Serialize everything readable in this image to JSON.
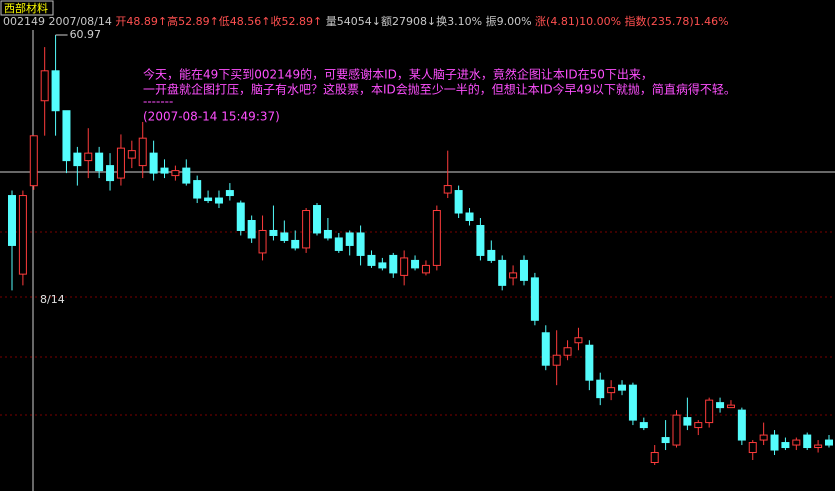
{
  "header": {
    "stock_name": "西部材料",
    "quote": [
      "002149 2007/08/14",
      "开48.89↑高52.89↑低48.56↑收52.89↑",
      "量54054↓额27908↓换3.10% 振9.00%",
      "涨(4.81)10.00% 指数(235.78)1.46%"
    ]
  },
  "chart_data": {
    "type": "candlestick",
    "up_color": "#ff3c3c",
    "down_color": "#54fcfc",
    "cursor_label": "8/14",
    "annotation": [
      "今天，能在49下买到002149的，可要感谢本ID，某人脑子进水，竟然企图让本ID在50下出来，",
      "一开盘就企图打压，脑子有水吧？这股票，本ID会抛至少一半的，但想让本ID今早49以下就抛，简直病得不轻。",
      "-------",
      "(2007-08-14 15:49:37)"
    ],
    "open": [
      48.1,
      41.8,
      48.89,
      55.7,
      58.1,
      54.9,
      51.5,
      50.9,
      51.5,
      50.5,
      49.5,
      51.1,
      50.5,
      51.5,
      50.3,
      49.7,
      50.3,
      49.3,
      47.9,
      47.9,
      48.5,
      47.5,
      46.1,
      43.5,
      45.3,
      45.1,
      44.5,
      43.9,
      47.3,
      45.3,
      44.7,
      45.1,
      45.1,
      43.3,
      42.7,
      43.3,
      41.7,
      42.9,
      41.9,
      42.5,
      48.3,
      48.5,
      46.7,
      45.7,
      43.7,
      42.9,
      41.5,
      42.9,
      41.5,
      37.1,
      34.5,
      35.3,
      36.3,
      36.1,
      33.3,
      32.3,
      32.9,
      32.9,
      29.9,
      26.7,
      28.7,
      28.1,
      30.3,
      29.5,
      29.9,
      31.5,
      31.1,
      30.9,
      27.5,
      28.5,
      28.9,
      28.3,
      28.1,
      28.9,
      27.9,
      28.5
    ],
    "high": [
      48.5,
      48.5,
      52.89,
      60.0,
      60.97,
      54.9,
      52.0,
      53.5,
      52.0,
      51.5,
      53.0,
      52.5,
      54.0,
      52.5,
      51.0,
      50.5,
      51.0,
      49.7,
      48.5,
      48.5,
      49.1,
      47.7,
      46.5,
      46.5,
      47.3,
      46.1,
      45.3,
      47.1,
      47.5,
      46.3,
      45.1,
      45.3,
      45.7,
      43.7,
      43.1,
      43.5,
      43.7,
      43.3,
      42.9,
      47.3,
      51.7,
      48.9,
      47.1,
      46.3,
      44.5,
      43.3,
      42.5,
      43.3,
      41.9,
      37.7,
      37.3,
      36.5,
      37.5,
      36.5,
      33.9,
      33.3,
      33.3,
      33.1,
      30.3,
      28.1,
      30.1,
      30.9,
      31.9,
      30.1,
      31.9,
      31.9,
      31.7,
      31.1,
      28.5,
      29.9,
      29.3,
      28.7,
      28.7,
      29.1,
      28.5,
      28.9
    ],
    "low": [
      40.5,
      40.9,
      48.56,
      52.9,
      52.9,
      49.9,
      48.9,
      49.5,
      49.5,
      48.5,
      48.9,
      50.3,
      49.5,
      49.3,
      49.5,
      49.3,
      48.9,
      47.5,
      47.5,
      47.1,
      47.7,
      44.9,
      44.3,
      42.9,
      44.5,
      44.3,
      43.7,
      43.5,
      44.9,
      44.5,
      43.5,
      43.3,
      42.5,
      42.3,
      42.1,
      41.5,
      40.9,
      42.1,
      41.7,
      42.1,
      47.9,
      46.3,
      45.7,
      42.9,
      42.7,
      40.5,
      40.9,
      40.9,
      37.7,
      34.1,
      32.9,
      34.9,
      35.7,
      32.5,
      31.3,
      31.7,
      32.1,
      29.7,
      29.3,
      26.5,
      27.7,
      27.9,
      29.3,
      28.9,
      29.5,
      30.7,
      31.1,
      28.1,
      26.9,
      28.1,
      27.3,
      27.7,
      27.7,
      27.7,
      27.5,
      27.9
    ],
    "close": [
      44.1,
      48.1,
      52.89,
      58.1,
      54.9,
      50.9,
      50.5,
      51.5,
      50.1,
      49.3,
      51.9,
      51.7,
      52.7,
      49.9,
      49.9,
      50.1,
      49.1,
      47.9,
      47.7,
      47.5,
      48.1,
      45.3,
      44.7,
      45.3,
      44.9,
      44.5,
      43.9,
      46.9,
      45.1,
      44.7,
      43.7,
      44.1,
      43.3,
      42.5,
      42.3,
      41.9,
      43.1,
      42.3,
      42.5,
      46.9,
      48.9,
      46.7,
      46.1,
      43.3,
      42.9,
      40.9,
      41.9,
      41.3,
      38.1,
      34.5,
      35.3,
      35.9,
      36.7,
      33.3,
      31.9,
      32.7,
      32.5,
      30.1,
      29.5,
      27.5,
      28.3,
      30.5,
      29.7,
      29.9,
      31.7,
      31.1,
      31.3,
      28.5,
      28.3,
      28.9,
      27.7,
      27.9,
      28.5,
      27.9,
      28.1,
      28.1
    ]
  }
}
